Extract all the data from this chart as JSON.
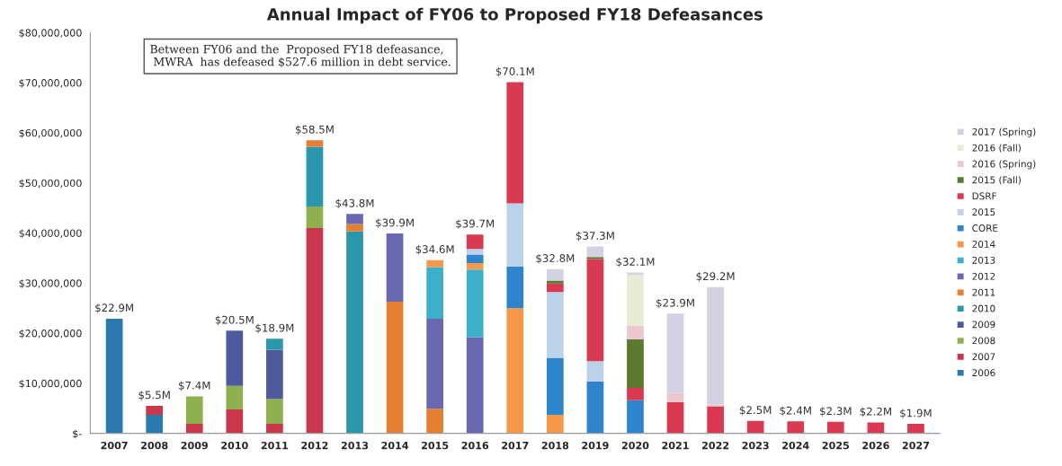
{
  "chart_data": {
    "type": "bar",
    "stacked": true,
    "title": "Annual Impact of FY06 to Proposed FY18 Defeasances",
    "categories": [
      "2007",
      "2008",
      "2009",
      "2010",
      "2011",
      "2012",
      "2013",
      "2014",
      "2015",
      "2016",
      "2017",
      "2018",
      "2019",
      "2020",
      "2021",
      "2022",
      "2023",
      "2024",
      "2025",
      "2026",
      "2027"
    ],
    "series": [
      {
        "name": "2006",
        "color": "#2a7ab0",
        "values": [
          22900000,
          3700000,
          null,
          null,
          null,
          null,
          null,
          null,
          null,
          null,
          null,
          null,
          null,
          null,
          null,
          null,
          null,
          null,
          null,
          null,
          null
        ]
      },
      {
        "name": "2007",
        "color": "#c8384a",
        "values": [
          null,
          1800000,
          1900000,
          4800000,
          1900000,
          41000000,
          null,
          null,
          null,
          null,
          null,
          null,
          null,
          null,
          null,
          null,
          null,
          null,
          null,
          null,
          null
        ]
      },
      {
        "name": "2008",
        "color": "#8fb04e",
        "values": [
          null,
          null,
          5500000,
          4700000,
          5000000,
          4300000,
          null,
          null,
          null,
          null,
          null,
          null,
          null,
          null,
          null,
          null,
          null,
          null,
          null,
          null,
          null
        ]
      },
      {
        "name": "2009",
        "color": "#4e5a9c",
        "values": [
          null,
          null,
          null,
          11000000,
          9800000,
          null,
          null,
          null,
          null,
          null,
          null,
          null,
          null,
          null,
          null,
          null,
          null,
          null,
          null,
          null,
          null
        ]
      },
      {
        "name": "2010",
        "color": "#2b97ad",
        "values": [
          null,
          null,
          null,
          null,
          2200000,
          11900000,
          40300000,
          null,
          null,
          null,
          null,
          null,
          null,
          null,
          null,
          null,
          null,
          null,
          null,
          null,
          null
        ]
      },
      {
        "name": "2011",
        "color": "#e57f32",
        "values": [
          null,
          null,
          null,
          null,
          null,
          1300000,
          1500000,
          26300000,
          4900000,
          null,
          null,
          null,
          null,
          null,
          null,
          null,
          null,
          null,
          null,
          null,
          null
        ]
      },
      {
        "name": "2012",
        "color": "#6a68b0",
        "values": [
          null,
          null,
          null,
          null,
          null,
          null,
          2000000,
          13600000,
          18000000,
          19200000,
          null,
          null,
          null,
          null,
          null,
          null,
          null,
          null,
          null,
          null,
          null
        ]
      },
      {
        "name": "2013",
        "color": "#3bb0c8",
        "values": [
          null,
          null,
          null,
          null,
          null,
          null,
          null,
          null,
          10300000,
          13500000,
          null,
          null,
          null,
          null,
          null,
          null,
          null,
          null,
          null,
          null,
          null
        ]
      },
      {
        "name": "2014",
        "color": "#f5984a",
        "values": [
          null,
          null,
          null,
          null,
          null,
          null,
          null,
          null,
          1400000,
          1300000,
          25000000,
          3700000,
          null,
          null,
          null,
          null,
          null,
          null,
          null,
          null,
          null
        ]
      },
      {
        "name": "CORE",
        "color": "#2f85cc",
        "values": [
          null,
          null,
          null,
          null,
          null,
          null,
          null,
          null,
          null,
          1700000,
          8300000,
          11400000,
          10400000,
          6600000,
          null,
          null,
          null,
          null,
          null,
          null,
          null
        ]
      },
      {
        "name": "2015",
        "color": "#bcd2ea",
        "values": [
          null,
          null,
          null,
          null,
          null,
          null,
          null,
          null,
          null,
          1100000,
          12600000,
          13100000,
          4000000,
          null,
          null,
          null,
          null,
          null,
          null,
          null,
          null
        ]
      },
      {
        "name": "DSRF",
        "color": "#d93a52",
        "values": [
          null,
          null,
          null,
          null,
          null,
          null,
          null,
          null,
          null,
          2900000,
          24200000,
          1700000,
          20400000,
          2500000,
          6200000,
          5400000,
          2500000,
          2400000,
          2300000,
          2200000,
          1900000
        ]
      },
      {
        "name": "2015 (Fall)",
        "color": "#5b7a30",
        "values": [
          null,
          null,
          null,
          null,
          null,
          null,
          null,
          null,
          null,
          null,
          null,
          600000,
          400000,
          9700000,
          null,
          null,
          null,
          null,
          null,
          null,
          null
        ]
      },
      {
        "name": "2016 (Spring)",
        "color": "#ebc8cf",
        "values": [
          null,
          null,
          null,
          null,
          null,
          null,
          null,
          null,
          null,
          null,
          null,
          null,
          null,
          2700000,
          1900000,
          400000,
          null,
          null,
          null,
          null,
          null
        ]
      },
      {
        "name": "2016 (Fall)",
        "color": "#e6edd2",
        "values": [
          null,
          null,
          null,
          null,
          null,
          null,
          null,
          null,
          null,
          null,
          null,
          null,
          null,
          10100000,
          null,
          null,
          null,
          null,
          null,
          null,
          null
        ]
      },
      {
        "name": "2017 (Spring)",
        "color": "#d2d2e2",
        "values": [
          null,
          null,
          null,
          null,
          null,
          null,
          null,
          null,
          null,
          null,
          null,
          2300000,
          2100000,
          500000,
          15800000,
          23400000,
          null,
          null,
          null,
          null,
          null
        ]
      }
    ],
    "totals": [
      "$22.9M",
      "$5.5M",
      "$7.4M",
      "$20.5M",
      "$18.9M",
      "$58.5M",
      "$43.8M",
      "$39.9M",
      "$34.6M",
      "$39.7M",
      "$70.1M",
      "$32.8M",
      "$37.3M",
      "$32.1M",
      "$23.9M",
      "$29.2M",
      "$2.5M",
      "$2.4M",
      "$2.3M",
      "$2.2M",
      "$1.9M"
    ],
    "ylim": [
      0,
      80000000
    ],
    "yticks": [
      {
        "value": 0,
        "label": "$-"
      },
      {
        "value": 10000000,
        "label": "$10,000,000"
      },
      {
        "value": 20000000,
        "label": "$20,000,000"
      },
      {
        "value": 30000000,
        "label": "$30,000,000"
      },
      {
        "value": 40000000,
        "label": "$40,000,000"
      },
      {
        "value": 50000000,
        "label": "$50,000,000"
      },
      {
        "value": 60000000,
        "label": "$60,000,000"
      },
      {
        "value": 70000000,
        "label": "$70,000,000"
      },
      {
        "value": 80000000,
        "label": "$80,000,000"
      }
    ],
    "annotations": [
      "Between FY06 and the  Proposed FY18 defeasance,\n MWRA  has defeased $527.6 million in debt service."
    ],
    "legend": "right",
    "grid": false
  }
}
